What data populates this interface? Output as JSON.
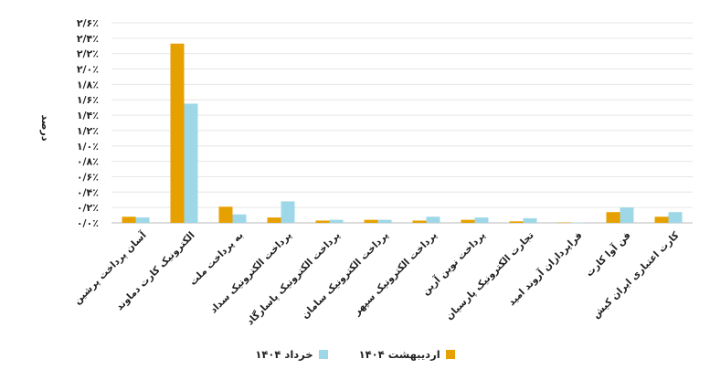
{
  "chart_data": {
    "type": "bar",
    "title": "",
    "xlabel": "",
    "ylabel": "درصد",
    "ylim": [
      0,
      2.6
    ],
    "yticks": [
      "۰/۰٪",
      "۰/۲٪",
      "۰/۴٪",
      "۰/۶٪",
      "۰/۸٪",
      "۱/۰٪",
      "۱/۲٪",
      "۱/۴٪",
      "۱/۶٪",
      "۱/۸٪",
      "۲/۰٪",
      "۲/۲٪",
      "۲/۴٪",
      "۲/۶٪"
    ],
    "grid": true,
    "legend_position": "bottom",
    "categories": [
      "آسان پرداخت پرشین",
      "الکترونیک کارت دماوند",
      "به پرداخت ملت",
      "پرداخت الکترونیک سداد",
      "پرداخت الکترونیک پاسارگاد",
      "پرداخت الکترونیک سامان",
      "پرداخت الکترونیک سپهر",
      "پرداخت نوین آرین",
      "تجارت الکترونیک پارسیان",
      "فراپردازان آروند امید",
      "فن آوا کارت",
      "کارت اعتباری ایران کیش"
    ],
    "series": [
      {
        "name": "اردیبهشت ۱۴۰۴",
        "color": "#E6A100",
        "values": [
          0.08,
          2.33,
          0.21,
          0.07,
          0.03,
          0.04,
          0.03,
          0.04,
          0.02,
          0.005,
          0.14,
          0.08
        ]
      },
      {
        "name": "خرداد ۱۴۰۴",
        "color": "#9ED8E8",
        "values": [
          0.07,
          1.55,
          0.11,
          0.28,
          0.04,
          0.04,
          0.08,
          0.07,
          0.06,
          0.005,
          0.2,
          0.14
        ]
      }
    ]
  }
}
